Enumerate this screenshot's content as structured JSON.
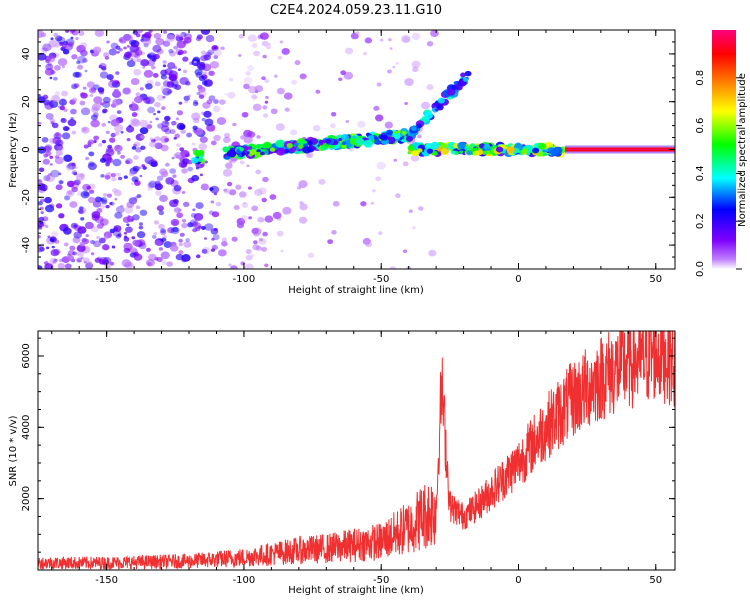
{
  "title": "C2E4.2024.059.23.11.G10",
  "chart_data": [
    {
      "type": "heatmap",
      "xlabel": "Height of straight line (km)",
      "ylabel": "Frequency (Hz)",
      "xlim": [
        -175,
        57
      ],
      "ylim": [
        -50,
        50
      ],
      "x_ticks": [
        -150,
        -100,
        -50,
        0,
        50
      ],
      "x_tick_labels": [
        "-150",
        "-100",
        "-50",
        "0",
        "50"
      ],
      "y_ticks": [
        40,
        20,
        0,
        -20,
        -40
      ],
      "y_tick_labels": [
        "40",
        "20",
        "0",
        "-20",
        "-40"
      ],
      "colorbar": {
        "label": "Normalized spectral amplitude",
        "range": [
          0,
          1
        ],
        "ticks": [
          0.0,
          0.2,
          0.4,
          0.6,
          0.8
        ],
        "tick_labels": [
          "0.0",
          "0.2",
          "0.4",
          "0.6",
          "0.8"
        ],
        "colormap": [
          "#ffffff",
          "#8000ff",
          "#0000ff",
          "#00ffff",
          "#00ff00",
          "#ffff00",
          "#ff8000",
          "#ff0000",
          "#ff0080"
        ]
      },
      "features": [
        {
          "name": "noise",
          "x": [
            -175,
            -30
          ],
          "freq": [
            -50,
            50
          ],
          "level": 0.2
        },
        {
          "name": "band",
          "x": [
            -118,
            -40
          ],
          "freq_start": -3,
          "freq_end": 6,
          "level": 0.45
        },
        {
          "name": "branch",
          "x": [
            -40,
            -18
          ],
          "freq_start": 5,
          "freq_end": 32,
          "level": 0.3
        },
        {
          "name": "line",
          "x": [
            -40,
            17
          ],
          "freq": 0,
          "level": 0.55
        },
        {
          "name": "solid-line",
          "x": [
            17,
            57
          ],
          "freq": 0,
          "level": 0.9
        }
      ]
    },
    {
      "type": "line",
      "xlabel": "Height of straight line (km)",
      "ylabel": "SNR (10 * v/v)",
      "xlim": [
        -175,
        57
      ],
      "ylim": [
        0,
        6700
      ],
      "x_ticks": [
        -150,
        -100,
        -50,
        0,
        50
      ],
      "x_tick_labels": [
        "-150",
        "-100",
        "-50",
        "0",
        "50"
      ],
      "y_ticks": [
        2000,
        4000,
        6000
      ],
      "y_tick_labels": [
        "2000",
        "4000",
        "6000"
      ],
      "color": "#f03030",
      "series": [
        {
          "x": [
            -175,
            -150,
            -120,
            -100,
            -90,
            -80,
            -70,
            -60,
            -50,
            -40,
            -35,
            -30,
            -28,
            -25,
            -20,
            -15,
            -10,
            -5,
            0,
            5,
            10,
            15,
            20,
            25,
            30,
            35,
            40,
            45,
            50,
            55,
            57
          ],
          "values": [
            200,
            200,
            250,
            350,
            450,
            550,
            600,
            700,
            800,
            1200,
            1500,
            1700,
            5200,
            1800,
            1500,
            1800,
            2200,
            2600,
            3000,
            3500,
            4000,
            4400,
            4800,
            5100,
            5400,
            5600,
            5800,
            5900,
            6100,
            6000,
            5800
          ]
        }
      ]
    }
  ]
}
